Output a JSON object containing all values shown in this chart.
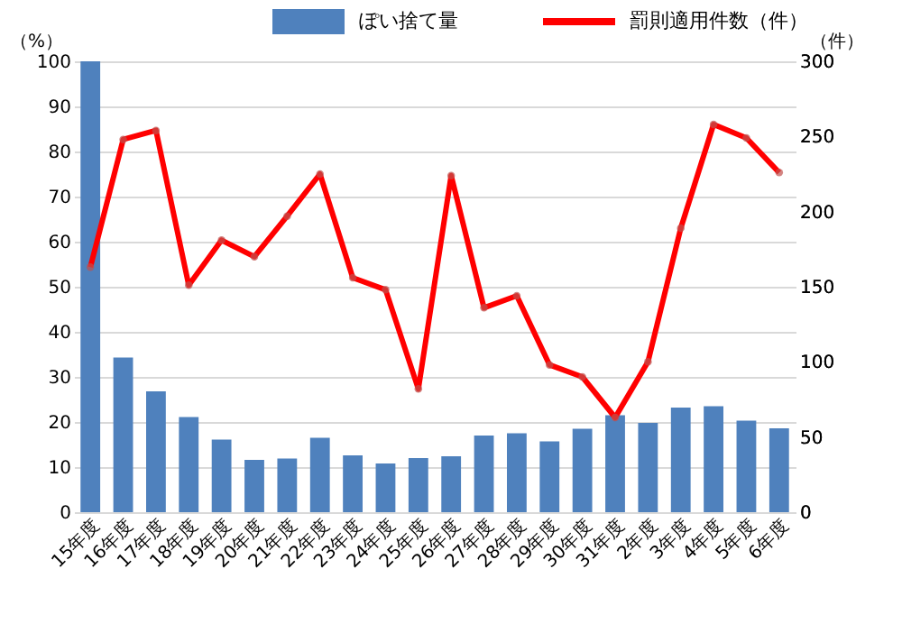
{
  "chart_data": {
    "type": "bar",
    "categories": [
      "15年度",
      "16年度",
      "17年度",
      "18年度",
      "19年度",
      "20年度",
      "21年度",
      "22年度",
      "23年度",
      "24年度",
      "25年度",
      "26年度",
      "27年度",
      "28年度",
      "29年度",
      "30年度",
      "31年度",
      "2年度",
      "3年度",
      "4年度",
      "5年度",
      "6年度"
    ],
    "series": [
      {
        "name": "ぽい捨て量",
        "color": "#4f81bd",
        "values": [
          100,
          34.3,
          26.8,
          21.1,
          16.1,
          11.6,
          11.9,
          16.5,
          12.6,
          10.8,
          12.0,
          12.4,
          17.0,
          17.5,
          15.7,
          18.5,
          21.5,
          19.8,
          23.2,
          23.5,
          20.3,
          18.6
        ]
      },
      {
        "name": "罰則適用件数（件）",
        "color": "#ff0000",
        "type": "line",
        "axis": "y2",
        "marker": "circle",
        "values": [
          163,
          248,
          254,
          151,
          181,
          170,
          197,
          225,
          156,
          148,
          82,
          224,
          136,
          144,
          98,
          90,
          63,
          100,
          189,
          258,
          249,
          226
        ]
      }
    ],
    "ylabel": "（%）",
    "y2label": "（件）",
    "ylim": [
      0,
      100
    ],
    "yticks": [
      0,
      10,
      20,
      30,
      40,
      50,
      60,
      70,
      80,
      90,
      100
    ],
    "y2lim": [
      0,
      300
    ],
    "y2ticks": [
      0,
      50,
      100,
      150,
      200,
      250,
      300
    ],
    "grid": "y",
    "legend": "top"
  }
}
